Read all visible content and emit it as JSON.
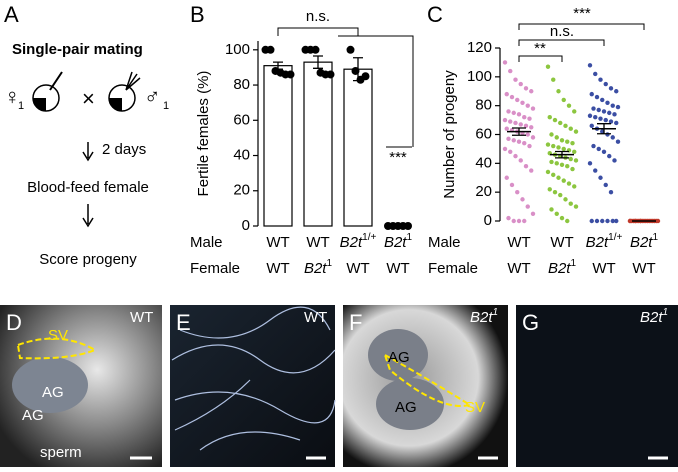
{
  "panels": {
    "a": {
      "letter": "A",
      "heading": "Single-pair mating",
      "female_symbol": "♀",
      "female_index": "1",
      "cross": "×",
      "male_symbol": "♂",
      "male_index": "1",
      "step_time": "2 days",
      "step1": "Blood-feed female",
      "step2": "Score progeny"
    },
    "b_letter": "B",
    "c_letter": "C",
    "d": {
      "letter": "D",
      "genotype": "WT",
      "sv": "SV",
      "ag1": "AG",
      "ag2": "AG",
      "sperm": "sperm"
    },
    "e": {
      "letter": "E",
      "genotype": "WT"
    },
    "f": {
      "letter": "F",
      "genotype": "B2t1",
      "ag1": "AG",
      "ag2": "AG",
      "sv": "SV"
    },
    "g": {
      "letter": "G",
      "genotype": "B2t1"
    }
  },
  "chart_data": [
    {
      "type": "bar",
      "y_label": "Fertile females (%)",
      "row_labels": [
        "Male",
        "Female"
      ],
      "categories": [
        "WT",
        "WT",
        "B2t1/+",
        "B2t1"
      ],
      "female": [
        "WT",
        "B2t1",
        "WT",
        "WT"
      ],
      "values": [
        91,
        93,
        89,
        0
      ],
      "errors": [
        2,
        3.5,
        6.5,
        0
      ],
      "points": [
        [
          100,
          100,
          88,
          87,
          86,
          86
        ],
        [
          100,
          100,
          100,
          87,
          86,
          86
        ],
        [
          100,
          88,
          83,
          85
        ],
        [
          0,
          0,
          0,
          0,
          0
        ]
      ],
      "color": "#ffffff",
      "point_color": "#000000",
      "ylim": [
        0,
        105
      ],
      "yticks": [
        0,
        20,
        40,
        60,
        80,
        100
      ],
      "significance": [
        "n.s.",
        "***"
      ]
    },
    {
      "type": "strip",
      "y_label": "Number of progeny",
      "row_labels": [
        "Male",
        "Female"
      ],
      "categories": [
        "WT",
        "WT",
        "B2t1/+",
        "B2t1"
      ],
      "female": [
        "WT",
        "B2t1",
        "WT",
        "WT"
      ],
      "means": [
        62,
        46,
        64,
        0
      ],
      "errors": [
        2.5,
        2.2,
        3.5,
        0
      ],
      "series": [
        {
          "color": "#d98fc7",
          "values": [
            110,
            104,
            98,
            95,
            92,
            90,
            88,
            86,
            84,
            82,
            80,
            78,
            76,
            75,
            74,
            72,
            71,
            70,
            69,
            68,
            67,
            66,
            65,
            64,
            63,
            62,
            61,
            60,
            58,
            57,
            56,
            55,
            54,
            52,
            50,
            48,
            45,
            42,
            38,
            35,
            30,
            25,
            20,
            15,
            10,
            5,
            2,
            0,
            0,
            0
          ]
        },
        {
          "color": "#8cc63f",
          "values": [
            107,
            98,
            90,
            84,
            80,
            76,
            72,
            70,
            68,
            66,
            64,
            62,
            60,
            58,
            56,
            55,
            54,
            53,
            52,
            51,
            50,
            49,
            48,
            47,
            46,
            45,
            44,
            43,
            42,
            41,
            40,
            39,
            38,
            36,
            34,
            32,
            30,
            28,
            26,
            24,
            22,
            20,
            18,
            15,
            12,
            10,
            8,
            5,
            2,
            0
          ]
        },
        {
          "color": "#3b4ea3",
          "values": [
            108,
            102,
            98,
            95,
            92,
            90,
            88,
            86,
            84,
            82,
            80,
            79,
            78,
            77,
            76,
            75,
            74,
            73,
            72,
            71,
            70,
            69,
            68,
            66,
            64,
            62,
            60,
            58,
            55,
            52,
            50,
            48,
            45,
            42,
            40,
            35,
            30,
            25,
            20,
            0,
            0,
            0,
            0,
            0,
            0
          ]
        },
        {
          "color": "#c0392b",
          "values": [
            0,
            0,
            0,
            0,
            0,
            0,
            0,
            0,
            0,
            0,
            0,
            0,
            0,
            0,
            0,
            0,
            0,
            0,
            0,
            0
          ]
        }
      ],
      "ylim": [
        0,
        120
      ],
      "yticks": [
        0,
        20,
        40,
        60,
        80,
        100,
        120
      ],
      "significance": [
        "**",
        "n.s.",
        "***"
      ]
    }
  ]
}
